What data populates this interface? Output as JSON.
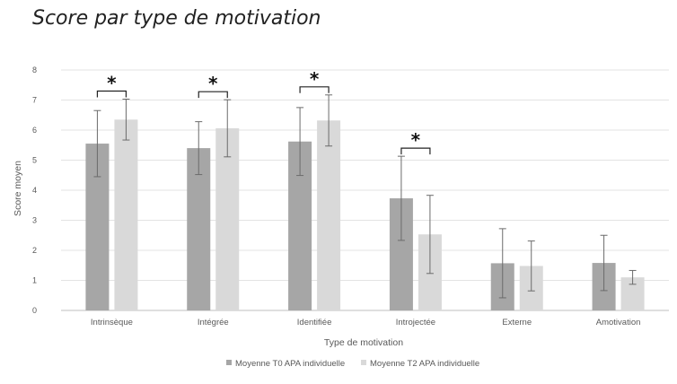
{
  "chart_data": {
    "type": "bar",
    "title": "Score par type de motivation",
    "xlabel": "Type de motivation",
    "ylabel": "Score moyen",
    "ylim": [
      0,
      8
    ],
    "yticks": [
      0,
      1,
      2,
      3,
      4,
      5,
      6,
      7,
      8
    ],
    "grid": true,
    "legend_position": "bottom",
    "categories": [
      "Intrinsèque",
      "Intégrée",
      "Identifiée",
      "Introjectée",
      "Externe",
      "Amotivation"
    ],
    "series": [
      {
        "name": "Moyenne T0 APA individuelle",
        "color": "#a6a6a6",
        "values": [
          5.55,
          5.4,
          5.62,
          3.73,
          1.57,
          1.58
        ],
        "error": [
          1.1,
          0.88,
          1.13,
          1.4,
          1.15,
          0.92
        ]
      },
      {
        "name": "Moyenne T2 APA individuelle",
        "color": "#d9d9d9",
        "values": [
          6.35,
          6.06,
          6.32,
          2.53,
          1.48,
          1.1
        ],
        "error": [
          0.68,
          0.95,
          0.85,
          1.3,
          0.83,
          0.23
        ]
      }
    ],
    "significance": [
      {
        "category_index": 0,
        "label": "*"
      },
      {
        "category_index": 1,
        "label": "*"
      },
      {
        "category_index": 2,
        "label": "*"
      },
      {
        "category_index": 3,
        "label": "*"
      }
    ]
  }
}
